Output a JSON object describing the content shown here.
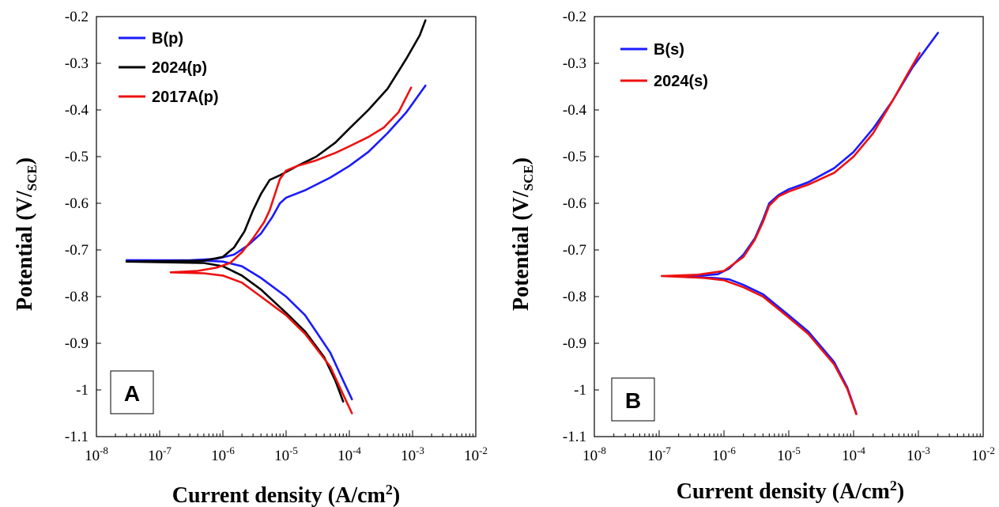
{
  "chart_data": [
    {
      "type": "line",
      "panel_label": "A",
      "xlabel": "Current density (A/cm²)",
      "ylabel": "Potential (V/SCE)",
      "xscale": "log",
      "xlim": [
        1e-08,
        0.01
      ],
      "ylim": [
        -1.1,
        -0.2
      ],
      "x_tick_labels": [
        "10-8",
        "10-7",
        "10-6",
        "10-5",
        "10-4",
        "10-3",
        "10-2"
      ],
      "y_tick_labels": [
        "-0.2",
        "-0.3",
        "-0.4",
        "-0.5",
        "-0.6",
        "-0.7",
        "-0.8",
        "-0.9",
        "-1",
        "-1.1"
      ],
      "legend_position": "top-left",
      "grid": false,
      "series": [
        {
          "name": "B(p)",
          "color": "#1a1aff",
          "anodic": [
            [
              3e-08,
              -0.722
            ],
            [
              3e-07,
              -0.722
            ],
            [
              8e-07,
              -0.719
            ],
            [
              1.5e-06,
              -0.71
            ],
            [
              2.5e-06,
              -0.69
            ],
            [
              4e-06,
              -0.665
            ],
            [
              6e-06,
              -0.63
            ],
            [
              8e-06,
              -0.6
            ],
            [
              1e-05,
              -0.588
            ],
            [
              2e-05,
              -0.572
            ],
            [
              5e-05,
              -0.545
            ],
            [
              0.0001,
              -0.52
            ],
            [
              0.0002,
              -0.49
            ],
            [
              0.0004,
              -0.45
            ],
            [
              0.0008,
              -0.405
            ],
            [
              0.0016,
              -0.348
            ]
          ],
          "cathodic": [
            [
              3e-08,
              -0.722
            ],
            [
              5e-07,
              -0.723
            ],
            [
              1e-06,
              -0.725
            ],
            [
              2e-06,
              -0.735
            ],
            [
              4e-06,
              -0.76
            ],
            [
              1e-05,
              -0.8
            ],
            [
              2e-05,
              -0.84
            ],
            [
              5e-05,
              -0.92
            ],
            [
              8e-05,
              -0.98
            ],
            [
              0.00011,
              -1.02
            ]
          ]
        },
        {
          "name": "2024(p)",
          "color": "#000000",
          "anodic": [
            [
              3e-08,
              -0.725
            ],
            [
              5e-07,
              -0.723
            ],
            [
              1e-06,
              -0.715
            ],
            [
              1.5e-06,
              -0.695
            ],
            [
              2.2e-06,
              -0.66
            ],
            [
              3e-06,
              -0.615
            ],
            [
              4e-06,
              -0.58
            ],
            [
              5.5e-06,
              -0.55
            ],
            [
              8e-06,
              -0.54
            ],
            [
              1.5e-05,
              -0.52
            ],
            [
              3e-05,
              -0.5
            ],
            [
              6e-05,
              -0.47
            ],
            [
              0.0001,
              -0.44
            ],
            [
              0.0002,
              -0.4
            ],
            [
              0.0004,
              -0.355
            ],
            [
              0.0008,
              -0.29
            ],
            [
              0.0013,
              -0.24
            ],
            [
              0.0016,
              -0.208
            ]
          ],
          "cathodic": [
            [
              3e-08,
              -0.725
            ],
            [
              5e-07,
              -0.728
            ],
            [
              1e-06,
              -0.735
            ],
            [
              2e-06,
              -0.755
            ],
            [
              4e-06,
              -0.785
            ],
            [
              1e-05,
              -0.835
            ],
            [
              2e-05,
              -0.875
            ],
            [
              4e-05,
              -0.93
            ],
            [
              6e-05,
              -0.98
            ],
            [
              8e-05,
              -1.025
            ]
          ]
        },
        {
          "name": "2017A(p)",
          "color": "#ee1111",
          "anodic": [
            [
              1.5e-07,
              -0.748
            ],
            [
              4e-07,
              -0.745
            ],
            [
              8e-07,
              -0.738
            ],
            [
              1.3e-06,
              -0.728
            ],
            [
              2e-06,
              -0.705
            ],
            [
              3e-06,
              -0.675
            ],
            [
              4.5e-06,
              -0.64
            ],
            [
              5.5e-06,
              -0.615
            ],
            [
              6.5e-06,
              -0.585
            ],
            [
              8e-06,
              -0.548
            ],
            [
              1e-05,
              -0.53
            ],
            [
              1.5e-05,
              -0.52
            ],
            [
              3e-05,
              -0.508
            ],
            [
              6e-05,
              -0.492
            ],
            [
              0.0001,
              -0.478
            ],
            [
              0.0002,
              -0.458
            ],
            [
              0.00035,
              -0.438
            ],
            [
              0.0006,
              -0.405
            ],
            [
              0.00095,
              -0.352
            ]
          ],
          "cathodic": [
            [
              1.5e-07,
              -0.748
            ],
            [
              5e-07,
              -0.75
            ],
            [
              1e-06,
              -0.755
            ],
            [
              2e-06,
              -0.77
            ],
            [
              4e-06,
              -0.8
            ],
            [
              1e-05,
              -0.84
            ],
            [
              2e-05,
              -0.88
            ],
            [
              5e-05,
              -0.95
            ],
            [
              8e-05,
              -1.01
            ],
            [
              0.00011,
              -1.05
            ]
          ]
        }
      ]
    },
    {
      "type": "line",
      "panel_label": "B",
      "xlabel": "Current density (A/cm²)",
      "ylabel": "Potential (V/SCE)",
      "xscale": "log",
      "xlim": [
        1e-08,
        0.01
      ],
      "ylim": [
        -1.1,
        -0.2
      ],
      "x_tick_labels": [
        "10-8",
        "10-7",
        "10-6",
        "10-5",
        "10-4",
        "10-3",
        "10-2"
      ],
      "y_tick_labels": [
        "-0.2",
        "-0.3",
        "-0.4",
        "-0.5",
        "-0.6",
        "-0.7",
        "-0.8",
        "-0.9",
        "-1",
        "-1.1"
      ],
      "legend_position": "top-left",
      "grid": false,
      "series": [
        {
          "name": "B(s)",
          "color": "#1a1aff",
          "anodic": [
            [
              2.5e-07,
              -0.758
            ],
            [
              8e-07,
              -0.752
            ],
            [
              1.2e-06,
              -0.74
            ],
            [
              2e-06,
              -0.71
            ],
            [
              3e-06,
              -0.675
            ],
            [
              4e-06,
              -0.635
            ],
            [
              5e-06,
              -0.6
            ],
            [
              7e-06,
              -0.582
            ],
            [
              1e-05,
              -0.57
            ],
            [
              2e-05,
              -0.555
            ],
            [
              5e-05,
              -0.525
            ],
            [
              0.0001,
              -0.49
            ],
            [
              0.0002,
              -0.44
            ],
            [
              0.0004,
              -0.38
            ],
            [
              0.0008,
              -0.31
            ],
            [
              0.002,
              -0.235
            ]
          ],
          "cathodic": [
            [
              2.5e-07,
              -0.758
            ],
            [
              7e-07,
              -0.76
            ],
            [
              1.2e-06,
              -0.763
            ],
            [
              2e-06,
              -0.775
            ],
            [
              4e-06,
              -0.795
            ],
            [
              1e-05,
              -0.84
            ],
            [
              2e-05,
              -0.875
            ],
            [
              5e-05,
              -0.94
            ],
            [
              8e-05,
              -0.995
            ],
            [
              0.00011,
              -1.05
            ]
          ]
        },
        {
          "name": "2024(s)",
          "color": "#ee1111",
          "anodic": [
            [
              1.1e-07,
              -0.756
            ],
            [
              4e-07,
              -0.753
            ],
            [
              1e-06,
              -0.745
            ],
            [
              2e-06,
              -0.715
            ],
            [
              3e-06,
              -0.678
            ],
            [
              4e-06,
              -0.64
            ],
            [
              5e-06,
              -0.605
            ],
            [
              7e-06,
              -0.585
            ],
            [
              1e-05,
              -0.575
            ],
            [
              2e-05,
              -0.56
            ],
            [
              5e-05,
              -0.535
            ],
            [
              0.0001,
              -0.5
            ],
            [
              0.0002,
              -0.45
            ],
            [
              0.0004,
              -0.38
            ],
            [
              0.0007,
              -0.32
            ],
            [
              0.00105,
              -0.278
            ]
          ],
          "cathodic": [
            [
              1.1e-07,
              -0.756
            ],
            [
              5e-07,
              -0.76
            ],
            [
              1e-06,
              -0.765
            ],
            [
              2e-06,
              -0.78
            ],
            [
              4e-06,
              -0.8
            ],
            [
              1e-05,
              -0.845
            ],
            [
              2e-05,
              -0.88
            ],
            [
              5e-05,
              -0.945
            ],
            [
              8e-05,
              -0.998
            ],
            [
              0.00011,
              -1.052
            ]
          ]
        }
      ]
    }
  ]
}
